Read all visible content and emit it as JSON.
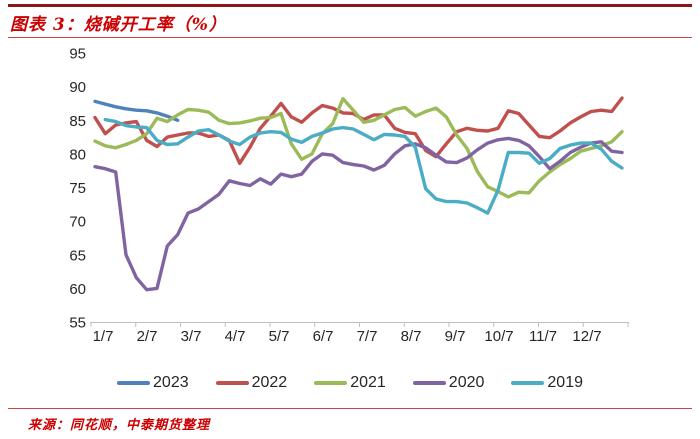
{
  "header": {
    "title": "图表 3：烧碱开工率（%）"
  },
  "footer": {
    "source": "来源：同花顺，中泰期货整理"
  },
  "chart_data": {
    "type": "line",
    "title": "烧碱开工率（%）",
    "grid": false,
    "legend_position": "bottom",
    "x_axis": {
      "labels": [
        "1/7",
        "2/7",
        "3/7",
        "4/7",
        "5/7",
        "6/7",
        "7/7",
        "8/7",
        "9/7",
        "10/7",
        "11/7",
        "12/7"
      ],
      "weeks_total": 52
    },
    "y_axis": {
      "min": 55,
      "max": 95,
      "step": 5,
      "ticks": [
        95,
        90,
        85,
        80,
        75,
        70,
        65,
        60,
        55
      ]
    },
    "series": [
      {
        "name": "2023",
        "color": "#4F81BD",
        "start_week": 0,
        "values": [
          87.8,
          87.4,
          87.0,
          86.7,
          86.5,
          86.4,
          86.1,
          85.6,
          85.0
        ]
      },
      {
        "name": "2022",
        "color": "#C0504D",
        "start_week": 0,
        "values": [
          85.4,
          83.0,
          84.3,
          84.6,
          84.8,
          82.0,
          81.1,
          82.5,
          82.8,
          83.1,
          83.1,
          82.6,
          82.8,
          82.0,
          78.6,
          81.0,
          83.8,
          85.6,
          87.5,
          85.5,
          84.7,
          86.1,
          87.2,
          86.8,
          86.1,
          86.0,
          85.1,
          85.8,
          85.8,
          83.8,
          83.2,
          83.0,
          80.5,
          79.6,
          81.5,
          83.3,
          83.8,
          83.5,
          83.4,
          83.8,
          86.4,
          86.0,
          84.3,
          82.6,
          82.4,
          83.4,
          84.6,
          85.5,
          86.3,
          86.5,
          86.3,
          88.3
        ]
      },
      {
        "name": "2021",
        "color": "#9BBB59",
        "start_week": 0,
        "values": [
          81.9,
          81.2,
          80.9,
          81.4,
          82.0,
          83.0,
          85.3,
          84.8,
          85.8,
          86.6,
          86.5,
          86.2,
          85.0,
          84.5,
          84.6,
          84.9,
          85.3,
          85.4,
          86.0,
          81.5,
          79.2,
          80.0,
          83.0,
          84.5,
          88.2,
          86.5,
          84.7,
          85.0,
          85.8,
          86.6,
          86.9,
          85.6,
          86.3,
          86.8,
          85.5,
          82.8,
          80.8,
          77.4,
          75.1,
          74.4,
          73.6,
          74.3,
          74.2,
          76.0,
          77.3,
          78.4,
          79.3,
          80.4,
          80.8,
          81.2,
          81.8,
          83.3
        ]
      },
      {
        "name": "2020",
        "color": "#8064A2",
        "start_week": 0,
        "values": [
          78.1,
          77.8,
          77.3,
          65.0,
          61.6,
          59.8,
          60.0,
          66.3,
          68.0,
          71.2,
          71.8,
          72.9,
          74.0,
          76.0,
          75.6,
          75.3,
          76.3,
          75.5,
          77.0,
          76.6,
          77.0,
          78.9,
          80.0,
          79.8,
          78.7,
          78.4,
          78.2,
          77.6,
          78.3,
          80.0,
          81.2,
          81.5,
          80.9,
          79.8,
          78.8,
          78.7,
          79.4,
          80.6,
          81.6,
          82.1,
          82.3,
          82.0,
          81.2,
          79.6,
          77.8,
          78.9,
          80.2,
          81.0,
          81.6,
          81.8,
          80.4,
          80.2
        ]
      },
      {
        "name": "2019",
        "color": "#4BACC6",
        "start_week": 1,
        "values": [
          85.1,
          84.8,
          84.2,
          84.0,
          83.9,
          82.0,
          81.4,
          81.5,
          82.5,
          83.4,
          83.6,
          82.8,
          81.9,
          81.4,
          82.5,
          83.1,
          83.3,
          83.2,
          82.2,
          81.7,
          82.6,
          83.1,
          83.7,
          83.9,
          83.7,
          82.9,
          82.1,
          82.9,
          82.8,
          82.6,
          81.0,
          74.8,
          73.3,
          72.9,
          72.9,
          72.7,
          72.0,
          71.2,
          74.6,
          80.2,
          80.2,
          80.1,
          78.6,
          79.3,
          80.8,
          81.3,
          81.6,
          81.6,
          80.7,
          78.9,
          77.9
        ]
      }
    ],
    "axis_color": "#BFBFBF",
    "label_color": "#262626"
  }
}
